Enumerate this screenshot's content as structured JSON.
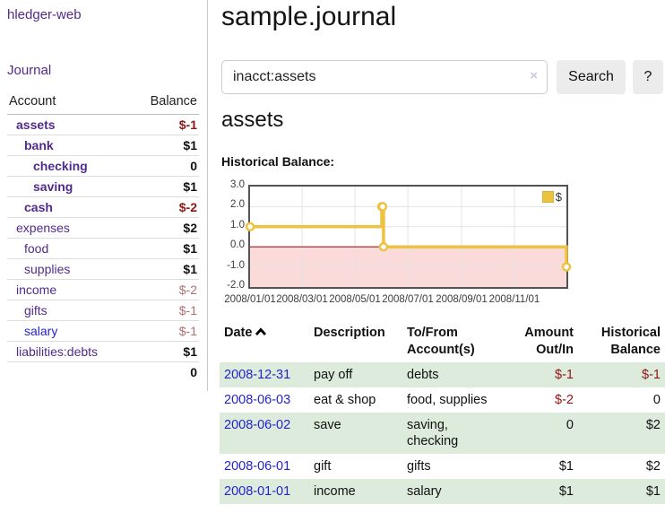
{
  "app": {
    "brand": "hledger-web"
  },
  "sidebar": {
    "journal_label": "Journal",
    "accounts_table": {
      "headers": [
        "Account",
        "Balance"
      ],
      "rows": [
        {
          "name": "assets",
          "balance": "$-1"
        },
        {
          "name": "bank",
          "balance": "$1"
        },
        {
          "name": "checking",
          "balance": "0"
        },
        {
          "name": "saving",
          "balance": "$1"
        },
        {
          "name": "cash",
          "balance": "$-2"
        },
        {
          "name": "expenses",
          "balance": "$2"
        },
        {
          "name": "food",
          "balance": "$1"
        },
        {
          "name": "supplies",
          "balance": "$1"
        },
        {
          "name": "income",
          "balance": "$-2"
        },
        {
          "name": "gifts",
          "balance": "$-1"
        },
        {
          "name": "salary",
          "balance": "$-1"
        },
        {
          "name": "liabilities:debts",
          "balance": "$1"
        }
      ],
      "total": "0"
    }
  },
  "header": {
    "title": "sample.journal"
  },
  "search": {
    "value": "inacct:assets",
    "clear_icon": "×",
    "button_label": "Search",
    "help_label": "?"
  },
  "account_page": {
    "heading": "assets",
    "chart_label": "Historical Balance:"
  },
  "chart_data": {
    "type": "line",
    "title": "Historical Balance:",
    "step": true,
    "x_range": [
      "2008-01-01",
      "2008-12-31"
    ],
    "ylim": [
      -2,
      3
    ],
    "y_ticks": [
      {
        "v": 3,
        "label": "3.0"
      },
      {
        "v": 2,
        "label": "2.0"
      },
      {
        "v": 1,
        "label": "1.0"
      },
      {
        "v": 0,
        "label": "0.0"
      },
      {
        "v": -1,
        "label": "-1.0"
      },
      {
        "v": -2,
        "label": "-2.0"
      }
    ],
    "x_ticks": [
      {
        "date": "2008-01-01",
        "label": "2008/01/01"
      },
      {
        "date": "2008-03-01",
        "label": "2008/03/01"
      },
      {
        "date": "2008-05-01",
        "label": "2008/05/01"
      },
      {
        "date": "2008-07-01",
        "label": "2008/07/01"
      },
      {
        "date": "2008-09-01",
        "label": "2008/09/01"
      },
      {
        "date": "2008-11-01",
        "label": "2008/11/01"
      }
    ],
    "series": [
      {
        "name": "$",
        "color": "#edc240",
        "points": [
          {
            "date": "2008-01-01",
            "value": 1
          },
          {
            "date": "2008-06-01",
            "value": 2
          },
          {
            "date": "2008-06-02",
            "value": 2
          },
          {
            "date": "2008-06-03",
            "value": 0
          },
          {
            "date": "2008-12-31",
            "value": -1
          }
        ]
      }
    ],
    "legend": {
      "label": "$",
      "position": "top-right"
    },
    "grid": true,
    "negative_fill": "#fbdada",
    "zero_line_color": "#941f1f",
    "gridline_color": "#e3e3e3"
  },
  "register": {
    "headers": {
      "date": "Date",
      "description": "Description",
      "accounts": "To/From Account(s)",
      "amount": "Amount Out/In",
      "balance": "Historical Balance"
    },
    "sort_icon": "chevron-up",
    "rows": [
      {
        "date": "2008-12-31",
        "description": "pay off",
        "accounts": "debts",
        "amount": "$-1",
        "balance": "$-1"
      },
      {
        "date": "2008-06-03",
        "description": "eat & shop",
        "accounts": "food, supplies",
        "amount": "$-2",
        "balance": "0"
      },
      {
        "date": "2008-06-02",
        "description": "save",
        "accounts": "saving, checking",
        "amount": "0",
        "balance": "$2"
      },
      {
        "date": "2008-06-01",
        "description": "gift",
        "accounts": "gifts",
        "amount": "$1",
        "balance": "$2"
      },
      {
        "date": "2008-01-01",
        "description": "income",
        "accounts": "salary",
        "amount": "$1",
        "balance": "$1"
      }
    ]
  }
}
